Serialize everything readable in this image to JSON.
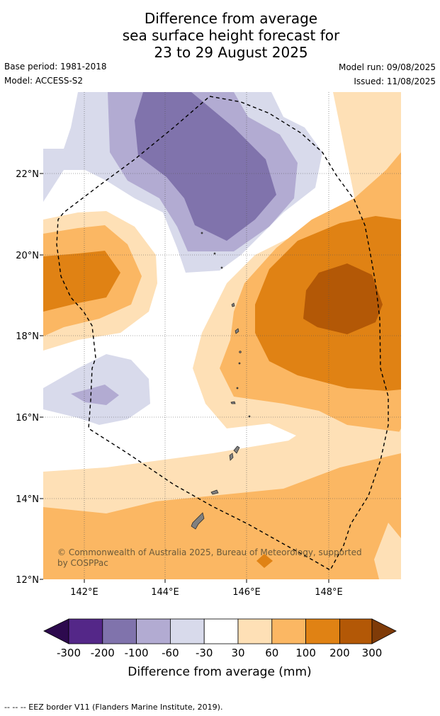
{
  "title": {
    "line1": "Difference from average",
    "line2": "sea surface height forecast for",
    "line3": "23 to 29 August 2025"
  },
  "meta": {
    "base_period": "Base period: 1981-2018",
    "model": "Model: ACCESS-S2",
    "model_run": "Model run: 09/08/2025",
    "issued": "Issued: 11/08/2025"
  },
  "map": {
    "lat_labels": [
      "22°N",
      "20°N",
      "18°N",
      "16°N",
      "14°N",
      "12°N"
    ],
    "lon_labels": [
      "142°E",
      "144°E",
      "146°E",
      "148°E"
    ],
    "copyright_line1": "© Commonwealth of Australia 2025, Bureau of Meteorology, supported",
    "copyright_line2": "by COSPPac",
    "colors": {
      "neg300": "#2d0a4e",
      "neg200": "#542788",
      "neg100": "#8073ac",
      "neg60": "#b2abd2",
      "neg30": "#d8daeb",
      "zero": "#ffffff",
      "pos30": "#fee0b6",
      "pos60": "#fbb763",
      "pos100": "#e08214",
      "pos200": "#b35806",
      "pos300": "#7f3b08",
      "land": "#808080"
    }
  },
  "colorbar": {
    "tick_labels": [
      "-300",
      "-200",
      "-100",
      "-60",
      "-30",
      "30",
      "60",
      "100",
      "200",
      "300"
    ],
    "title": "Difference from average (mm)"
  },
  "footnote": "--  --  -- EEZ border V11 (Flanders Marine Institute, 2019)."
}
